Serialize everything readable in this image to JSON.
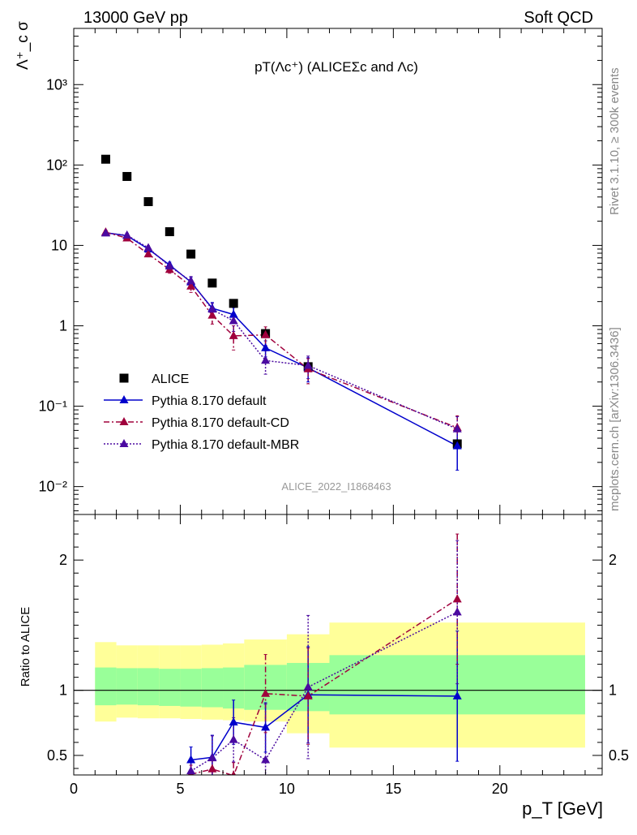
{
  "header": {
    "energy_label": "13000 GeV pp",
    "process_label": "Soft QCD"
  },
  "side_labels": {
    "rivet": "Rivet 3.1.10, ≥ 300k events",
    "mcplots": "mcplots.cern.ch [arXiv:1306.3436]"
  },
  "colors": {
    "data": "#000000",
    "default": "#0000cc",
    "cd": "#a0003c",
    "mbr": "#4b0aa0",
    "band_inner": "#99ff99",
    "band_outer": "#ffff99"
  },
  "chart_data": [
    {
      "type": "scatter",
      "panel": "main",
      "title": "pT(Λc⁺) (ALICEΣc and Λc)",
      "ylabel": "Λ⁺_c σ",
      "analysis_label": "ALICE_2022_I1868463",
      "y_scale": "log",
      "xlim": [
        0,
        24.8
      ],
      "ylim": [
        0.0045,
        5000
      ],
      "y_tick_labels": [
        "10⁻²",
        "10⁻¹",
        "1",
        "10",
        "10²",
        "10³"
      ],
      "legend_position": "lower-left",
      "series": [
        {
          "name": "ALICE",
          "style": "data",
          "x": [
            1.5,
            2.5,
            3.5,
            4.5,
            5.5,
            6.5,
            7.5,
            9,
            11,
            18
          ],
          "y": [
            118,
            72,
            35,
            14.8,
            7.8,
            3.4,
            1.9,
            0.8,
            0.31,
            0.034
          ]
        },
        {
          "name": "Pythia 8.170 default",
          "style": "default",
          "x": [
            1.5,
            2.5,
            3.5,
            4.5,
            5.5,
            6.5,
            7.5,
            9,
            11,
            18
          ],
          "y": [
            14.4,
            13.2,
            9.0,
            5.7,
            3.5,
            1.65,
            1.38,
            0.53,
            0.3,
            0.032
          ],
          "yerr": [
            0.9,
            0.8,
            0.6,
            0.5,
            0.5,
            0.3,
            0.3,
            0.12,
            0.1,
            0.016
          ]
        },
        {
          "name": "Pythia 8.170 default-CD",
          "style": "cd",
          "x": [
            1.5,
            2.5,
            3.5,
            4.5,
            5.5,
            6.5,
            7.5,
            9,
            11,
            18
          ],
          "y": [
            14.6,
            12.3,
            7.8,
            5.0,
            3.1,
            1.35,
            0.75,
            0.77,
            0.29,
            0.054
          ],
          "yerr": [
            0.9,
            0.8,
            0.6,
            0.5,
            0.5,
            0.3,
            0.25,
            0.2,
            0.1,
            0.022
          ]
        },
        {
          "name": "Pythia 8.170 default-MBR",
          "style": "mbr",
          "x": [
            1.5,
            2.5,
            3.5,
            4.5,
            5.5,
            6.5,
            7.5,
            9,
            11,
            18
          ],
          "y": [
            14.2,
            13.4,
            9.3,
            5.5,
            3.6,
            1.6,
            1.15,
            0.37,
            0.32,
            0.052
          ],
          "yerr": [
            0.9,
            0.8,
            0.6,
            0.5,
            0.5,
            0.3,
            0.3,
            0.12,
            0.1,
            0.022
          ]
        }
      ]
    },
    {
      "type": "line",
      "panel": "ratio",
      "ylabel": "Ratio to ALICE",
      "xlabel": "p_T [GeV]",
      "xlim": [
        0,
        24.8
      ],
      "ylim": [
        0.35,
        2.35
      ],
      "x_ticks": [
        0,
        5,
        10,
        15,
        20
      ],
      "y_ticks": [
        0.5,
        1,
        2
      ],
      "bands": {
        "edges": [
          1,
          2,
          3,
          4,
          5,
          6,
          7,
          8,
          10,
          12,
          24
        ],
        "inner_lo": [
          0.885,
          0.89,
          0.885,
          0.88,
          0.875,
          0.87,
          0.86,
          0.85,
          0.84,
          0.815
        ],
        "inner_hi": [
          1.175,
          1.17,
          1.17,
          1.165,
          1.165,
          1.17,
          1.175,
          1.195,
          1.21,
          1.27
        ],
        "outer_lo": [
          0.76,
          0.79,
          0.785,
          0.785,
          0.78,
          0.775,
          0.77,
          0.76,
          0.67,
          0.56
        ],
        "outer_hi": [
          1.37,
          1.345,
          1.345,
          1.345,
          1.345,
          1.35,
          1.36,
          1.39,
          1.43,
          1.52
        ]
      },
      "series": [
        {
          "name": "Pythia 8.170 default",
          "style": "default",
          "x": [
            5.5,
            6.5,
            7.5,
            9,
            11,
            18
          ],
          "y": [
            0.465,
            0.485,
            0.755,
            0.715,
            0.965,
            0.955
          ],
          "yerr": [
            0.1,
            0.17,
            0.17,
            0.19,
            0.37,
            0.5
          ]
        },
        {
          "name": "Pythia 8.170 default-CD",
          "style": "cd",
          "x": [
            5.5,
            6.5,
            7.5,
            9,
            11,
            18
          ],
          "y": [
            0.355,
            0.395,
            0.345,
            0.975,
            0.955,
            1.7
          ],
          "yerr": [
            0.07,
            0.1,
            0.1,
            0.3,
            0.37,
            0.5
          ]
        },
        {
          "name": "Pythia 8.170 default-MBR",
          "style": "mbr",
          "x": [
            5.5,
            6.5,
            7.5,
            9,
            11,
            18
          ],
          "y": [
            0.38,
            0.48,
            0.62,
            0.465,
            1.025,
            1.6
          ],
          "yerr": [
            0.08,
            0.17,
            0.17,
            0.43,
            0.55,
            0.55
          ]
        }
      ]
    }
  ]
}
